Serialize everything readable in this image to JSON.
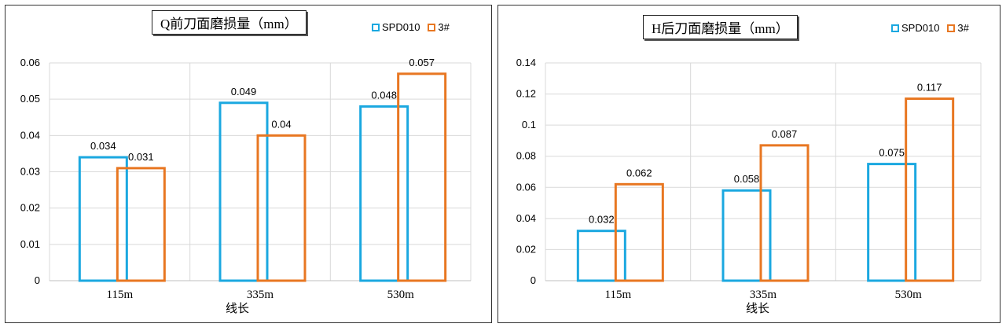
{
  "chart_data": [
    {
      "type": "bar",
      "title": "Q前刀面磨损量（mm）",
      "xlabel": "线长",
      "ylabel": "",
      "categories": [
        "115m",
        "335m",
        "530m"
      ],
      "ylim": [
        0,
        0.06
      ],
      "yticks": [
        "0",
        "0.01",
        "0.02",
        "0.03",
        "0.04",
        "0.05",
        "0.06"
      ],
      "grid": true,
      "legend": "top-right",
      "series": [
        {
          "name": "SPD010",
          "color": "#1ba8e0",
          "values": [
            0.034,
            0.049,
            0.048
          ],
          "labels": [
            "0.034",
            "0.049",
            "0.048"
          ]
        },
        {
          "name": "3#",
          "color": "#e87722",
          "values": [
            0.031,
            0.04,
            0.057
          ],
          "labels": [
            "0.031",
            "0.04",
            "0.057"
          ]
        }
      ]
    },
    {
      "type": "bar",
      "title": "H后刀面磨损量（mm）",
      "xlabel": "线长",
      "ylabel": "",
      "categories": [
        "115m",
        "335m",
        "530m"
      ],
      "ylim": [
        0,
        0.14
      ],
      "yticks": [
        "0",
        "0.02",
        "0.04",
        "0.06",
        "0.08",
        "0.1",
        "0.12",
        "0.14"
      ],
      "grid": true,
      "legend": "top-right",
      "series": [
        {
          "name": "SPD010",
          "color": "#1ba8e0",
          "values": [
            0.032,
            0.058,
            0.075
          ],
          "labels": [
            "0.032",
            "0.058",
            "0.075"
          ]
        },
        {
          "name": "3#",
          "color": "#e87722",
          "values": [
            0.062,
            0.087,
            0.117
          ],
          "labels": [
            "0.062",
            "0.087",
            "0.117"
          ]
        }
      ]
    }
  ]
}
